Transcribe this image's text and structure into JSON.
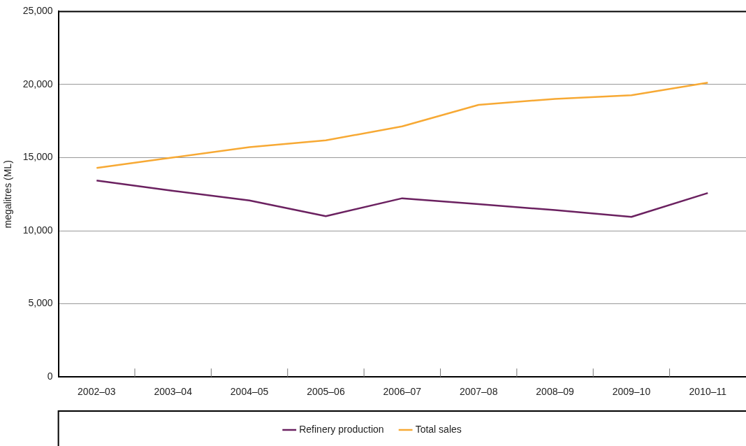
{
  "chart_data": {
    "type": "line",
    "ylabel": "megalitres (ML)",
    "categories": [
      "2002–03",
      "2003–04",
      "2004–05",
      "2005–06",
      "2006–07",
      "2007–08",
      "2008–09",
      "2009–10",
      "2010–11"
    ],
    "series": [
      {
        "name": "Refinery production",
        "color": "#6b2160",
        "values": [
          13440,
          12730,
          12070,
          11000,
          12220,
          11820,
          11410,
          10950,
          12580
        ]
      },
      {
        "name": "Total sales",
        "color": "#f7a934",
        "values": [
          14300,
          15010,
          15720,
          16180,
          17140,
          18610,
          19020,
          19270,
          20130
        ]
      }
    ],
    "ylim": [
      0,
      25000
    ],
    "yticks": [
      0,
      {
        "value": 5000,
        "label": "5,000"
      },
      {
        "value": 10000,
        "label": "10,000"
      },
      {
        "value": 15000,
        "label": "15,000"
      },
      {
        "value": 20000,
        "label": "20,000"
      },
      {
        "value": 25000,
        "label": "25,000"
      }
    ],
    "grid": "y",
    "legend": "bottom",
    "marker": "none",
    "line_style": "solid"
  }
}
